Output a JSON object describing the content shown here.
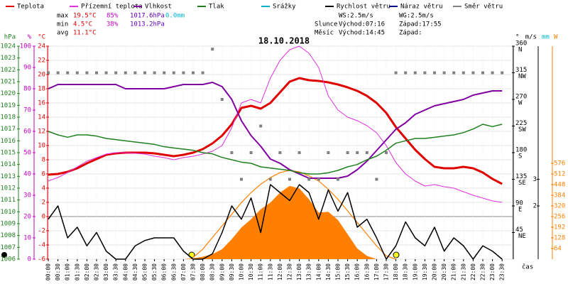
{
  "chart_data": {
    "type": "line",
    "title": "18.10.2018",
    "stats": [
      [
        "max",
        "19.5°C",
        "85%",
        "1017.6hPa",
        "0.0mm"
      ],
      [
        "min",
        "4.5°C",
        "38%",
        "1013.2hPa"
      ],
      [
        "avg",
        "11.1°C"
      ]
    ],
    "info": [
      [
        "WS:2.5m/s",
        "WG:2.5m/s"
      ],
      [
        "Slunce",
        "Východ:07:16",
        "Západ:17:55"
      ],
      [
        "Měsíc",
        "Východ:14:45",
        "Západ:"
      ]
    ],
    "x_label": "čas",
    "categories": [
      "00:00",
      "00:30",
      "01:00",
      "01:30",
      "02:00",
      "02:30",
      "03:00",
      "03:30",
      "04:00",
      "04:30",
      "05:00",
      "05:30",
      "06:00",
      "06:30",
      "07:00",
      "07:30",
      "08:00",
      "08:30",
      "09:00",
      "09:30",
      "10:00",
      "10:30",
      "11:00",
      "11:30",
      "12:00",
      "12:30",
      "13:00",
      "13:30",
      "14:00",
      "14:30",
      "15:00",
      "15:30",
      "16:00",
      "16:30",
      "17:00",
      "17:30",
      "18:00",
      "18:30",
      "19:00",
      "19:30",
      "20:00",
      "20:30",
      "21:00",
      "21:30",
      "22:00",
      "22:30",
      "23:00",
      "23:30"
    ],
    "axes": {
      "pressure": {
        "label": "hPa",
        "color": "#208020",
        "lim": [
          1006,
          1024
        ],
        "ticks": [
          1006,
          1007,
          1008,
          1009,
          1010,
          1011,
          1012,
          1013,
          1014,
          1015,
          1016,
          1017,
          1018,
          1019,
          1020,
          1021,
          1022,
          1023,
          1024
        ]
      },
      "humidity": {
        "label": "%",
        "color": "#c000c0",
        "lim": [
          0,
          100
        ],
        "ticks": [
          0,
          10,
          20,
          30,
          40,
          50,
          60,
          70,
          80,
          90,
          100
        ]
      },
      "temperature": {
        "label": "°C",
        "color": "#e00000",
        "lim": [
          -6,
          24
        ],
        "ticks": [
          -6,
          -4,
          -2,
          0,
          2,
          4,
          6,
          8,
          10,
          12,
          14,
          16,
          18,
          20,
          22,
          24
        ]
      },
      "direction": {
        "label": "°",
        "color": "#000000",
        "lim": [
          0,
          360
        ],
        "ticks": [
          {
            "value": 45,
            "label": "NE"
          },
          {
            "value": 90,
            "label": "E"
          },
          {
            "value": 135,
            "label": "SE"
          },
          {
            "value": 180,
            "label": "S"
          },
          {
            "value": 225,
            "label": "SW"
          },
          {
            "value": 270,
            "label": "W"
          },
          {
            "value": 315,
            "label": "NW"
          },
          {
            "value": 360,
            "label": "N"
          }
        ]
      },
      "wind": {
        "label": "m/s",
        "color": "#000000",
        "lim": [
          0,
          8
        ],
        "ticks": [
          2,
          3
        ]
      },
      "rain": {
        "label": "mm",
        "color": "#00b0d0"
      },
      "solar": {
        "label": "W",
        "color": "#ff8000",
        "lim": [
          0,
          1280
        ],
        "ticks": [
          64,
          128,
          192,
          256,
          320,
          384,
          448,
          512,
          576
        ]
      }
    },
    "grid": true,
    "series": [
      {
        "name": "Teplota",
        "color": "#e00000",
        "axis": "temperature",
        "width": 3,
        "values": [
          5.9,
          6.0,
          6.3,
          6.8,
          7.5,
          8.1,
          8.7,
          8.9,
          9.0,
          9.0,
          9.0,
          8.9,
          8.7,
          8.5,
          8.7,
          9.0,
          9.5,
          10.3,
          11.4,
          13.0,
          15.3,
          15.6,
          15.2,
          16.0,
          17.5,
          19.0,
          19.5,
          19.2,
          19.1,
          18.9,
          18.6,
          18.2,
          17.7,
          17.0,
          16.0,
          14.6,
          12.6,
          11.0,
          9.4,
          8.1,
          7.0,
          6.8,
          6.8,
          7.0,
          6.8,
          6.2,
          5.3,
          4.6
        ]
      },
      {
        "name": "Přízemní teplota",
        "color": "#e030e0",
        "axis": "temperature",
        "width": 1,
        "values": [
          5.0,
          5.5,
          6.2,
          7.0,
          7.8,
          8.3,
          8.8,
          9.0,
          9.0,
          8.9,
          8.8,
          8.5,
          8.3,
          8.0,
          8.3,
          8.5,
          8.8,
          9.2,
          10.0,
          12.5,
          16.0,
          16.5,
          16.0,
          19.5,
          22.0,
          23.5,
          24.0,
          23.0,
          21.0,
          17.0,
          15.0,
          14.0,
          13.5,
          12.8,
          11.8,
          10.0,
          7.6,
          6.0,
          5.0,
          4.3,
          4.5,
          4.2,
          4.0,
          3.5,
          3.0,
          2.6,
          2.2,
          2.0
        ]
      },
      {
        "name": "Vlhkost",
        "color": "#8000a0",
        "axis": "humidity",
        "width": 2,
        "values": [
          80,
          82,
          82,
          82,
          82,
          82,
          82,
          82,
          80,
          80,
          80,
          80,
          80,
          81,
          82,
          82,
          82,
          83,
          81,
          75,
          65,
          58,
          53,
          47,
          45,
          42,
          40,
          38,
          38,
          38,
          38,
          39,
          42,
          46,
          51,
          56,
          61,
          64,
          68,
          70,
          72,
          73,
          74,
          75,
          77,
          78,
          79,
          79
        ]
      },
      {
        "name": "Tlak",
        "color": "#208020",
        "axis": "pressure",
        "width": 1.5,
        "values": [
          1016.8,
          1016.5,
          1016.3,
          1016.5,
          1016.5,
          1016.4,
          1016.2,
          1016.1,
          1016.0,
          1015.9,
          1015.8,
          1015.7,
          1015.5,
          1015.4,
          1015.3,
          1015.2,
          1015.0,
          1014.9,
          1014.6,
          1014.4,
          1014.2,
          1014.1,
          1013.8,
          1013.7,
          1013.6,
          1013.5,
          1013.3,
          1013.2,
          1013.2,
          1013.3,
          1013.5,
          1013.8,
          1014.0,
          1014.4,
          1014.7,
          1015.2,
          1015.8,
          1016.0,
          1016.2,
          1016.2,
          1016.3,
          1016.4,
          1016.5,
          1016.7,
          1017.0,
          1017.4,
          1017.2,
          1017.4
        ]
      },
      {
        "name": "Srážky",
        "color": "#00b0d0",
        "axis": "rain"
      },
      {
        "name": "Rychlost větru",
        "color": "#000000",
        "axis": "wind",
        "width": 1.5,
        "values": [
          1.5,
          2.0,
          0.8,
          1.2,
          0.5,
          1.0,
          0.3,
          0,
          0,
          0.5,
          0.7,
          0.8,
          0.8,
          0.8,
          0.3,
          0,
          0,
          0.2,
          1.0,
          2.0,
          1.5,
          2.3,
          1.0,
          2.8,
          2.5,
          2.2,
          2.8,
          2.5,
          1.5,
          2.6,
          1.8,
          2.5,
          1.2,
          1.5,
          0.8,
          0,
          0.5,
          1.4,
          0.8,
          0.5,
          1.2,
          0.3,
          0.8,
          0.5,
          0,
          0.5,
          0.3,
          0
        ]
      },
      {
        "name": "Náraz větru",
        "color": "#000080",
        "axis": "wind"
      },
      {
        "name": "Směr větru",
        "color": "#808080",
        "axis": "direction",
        "points": true,
        "values": [
          315,
          315,
          315,
          315,
          315,
          315,
          315,
          315,
          315,
          315,
          315,
          315,
          315,
          315,
          315,
          315,
          315,
          355,
          270,
          180,
          135,
          180,
          225,
          135,
          180,
          135,
          180,
          135,
          135,
          180,
          135,
          180,
          180,
          180,
          135,
          180,
          315,
          315,
          315,
          315,
          315,
          315,
          315,
          315,
          315,
          315,
          315,
          315
        ]
      }
    ],
    "solar": {
      "axis": "solar",
      "color": "#ff8000",
      "values": [
        0,
        0,
        0,
        0,
        0,
        0,
        0,
        0,
        0,
        0,
        0,
        0,
        0,
        0,
        0,
        5,
        15,
        30,
        60,
        120,
        190,
        240,
        300,
        340,
        400,
        440,
        425,
        360,
        280,
        285,
        235,
        150,
        64,
        20,
        0,
        0,
        0,
        0,
        0,
        0,
        0,
        0,
        0,
        0,
        0,
        0,
        0,
        0
      ],
      "clear_sky": [
        null,
        null,
        null,
        null,
        null,
        null,
        null,
        null,
        null,
        null,
        null,
        null,
        null,
        null,
        null,
        10,
        60,
        130,
        200,
        270,
        340,
        400,
        450,
        490,
        520,
        533,
        525,
        500,
        470,
        420,
        360,
        290,
        220,
        150,
        80,
        20,
        0,
        null,
        null,
        null,
        null,
        null,
        null,
        null,
        null,
        null,
        null,
        null
      ]
    }
  }
}
